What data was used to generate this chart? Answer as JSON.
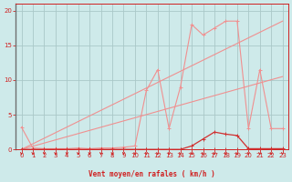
{
  "background_color": "#ceeaea",
  "grid_color": "#aac8c8",
  "line_color_dark": "#d03030",
  "line_color_light": "#f09090",
  "line_color_medium": "#e06060",
  "xlabel": "Vent moyen/en rafales ( km/h )",
  "xlabel_color": "#d02020",
  "tick_color": "#d02020",
  "xlim": [
    -0.5,
    23.5
  ],
  "ylim": [
    0,
    21
  ],
  "yticks": [
    0,
    5,
    10,
    15,
    20
  ],
  "xticks": [
    0,
    1,
    2,
    3,
    4,
    5,
    6,
    7,
    8,
    9,
    10,
    11,
    12,
    13,
    14,
    15,
    16,
    17,
    18,
    19,
    20,
    21,
    22,
    23
  ],
  "trend1_x": [
    0,
    23
  ],
  "trend1_y": [
    0,
    18.5
  ],
  "trend2_x": [
    0,
    23
  ],
  "trend2_y": [
    0,
    10.5
  ],
  "seriesA_x": [
    0,
    1,
    2,
    3,
    4,
    5,
    6,
    7,
    8,
    9,
    10,
    11,
    12,
    13,
    14,
    15,
    16,
    17,
    18,
    19,
    20,
    21,
    22,
    23
  ],
  "seriesA_y": [
    3.2,
    0.2,
    0.1,
    0.1,
    0.1,
    0.2,
    0.1,
    0.2,
    0.2,
    0.3,
    0.5,
    8.5,
    11.5,
    3.0,
    9.0,
    18.0,
    16.5,
    17.5,
    18.5,
    18.5,
    3.0,
    11.5,
    3.0,
    3.0
  ],
  "seriesB_x": [
    0,
    1,
    2,
    3,
    4,
    5,
    6,
    7,
    8,
    9,
    10,
    11,
    12,
    13,
    14,
    15,
    16,
    17,
    18,
    19,
    20,
    21,
    22,
    23
  ],
  "seriesB_y": [
    0,
    0,
    0,
    0,
    0,
    0,
    0,
    0,
    0,
    0,
    0,
    0,
    0,
    0,
    0,
    0.5,
    1.5,
    2.5,
    2.2,
    2.0,
    0.1,
    0.1,
    0.1,
    0.1
  ],
  "seriesC_x": [
    0,
    1,
    2,
    3,
    4,
    5,
    6,
    7,
    8,
    9,
    10,
    11,
    12,
    13,
    14,
    15,
    16,
    17,
    18,
    19,
    20,
    21,
    22,
    23
  ],
  "seriesC_y": [
    0,
    0,
    0,
    0,
    0,
    0,
    0,
    0,
    0,
    0,
    0,
    0,
    0,
    0,
    0,
    0,
    0,
    0,
    0,
    0,
    0,
    0,
    0,
    0
  ]
}
